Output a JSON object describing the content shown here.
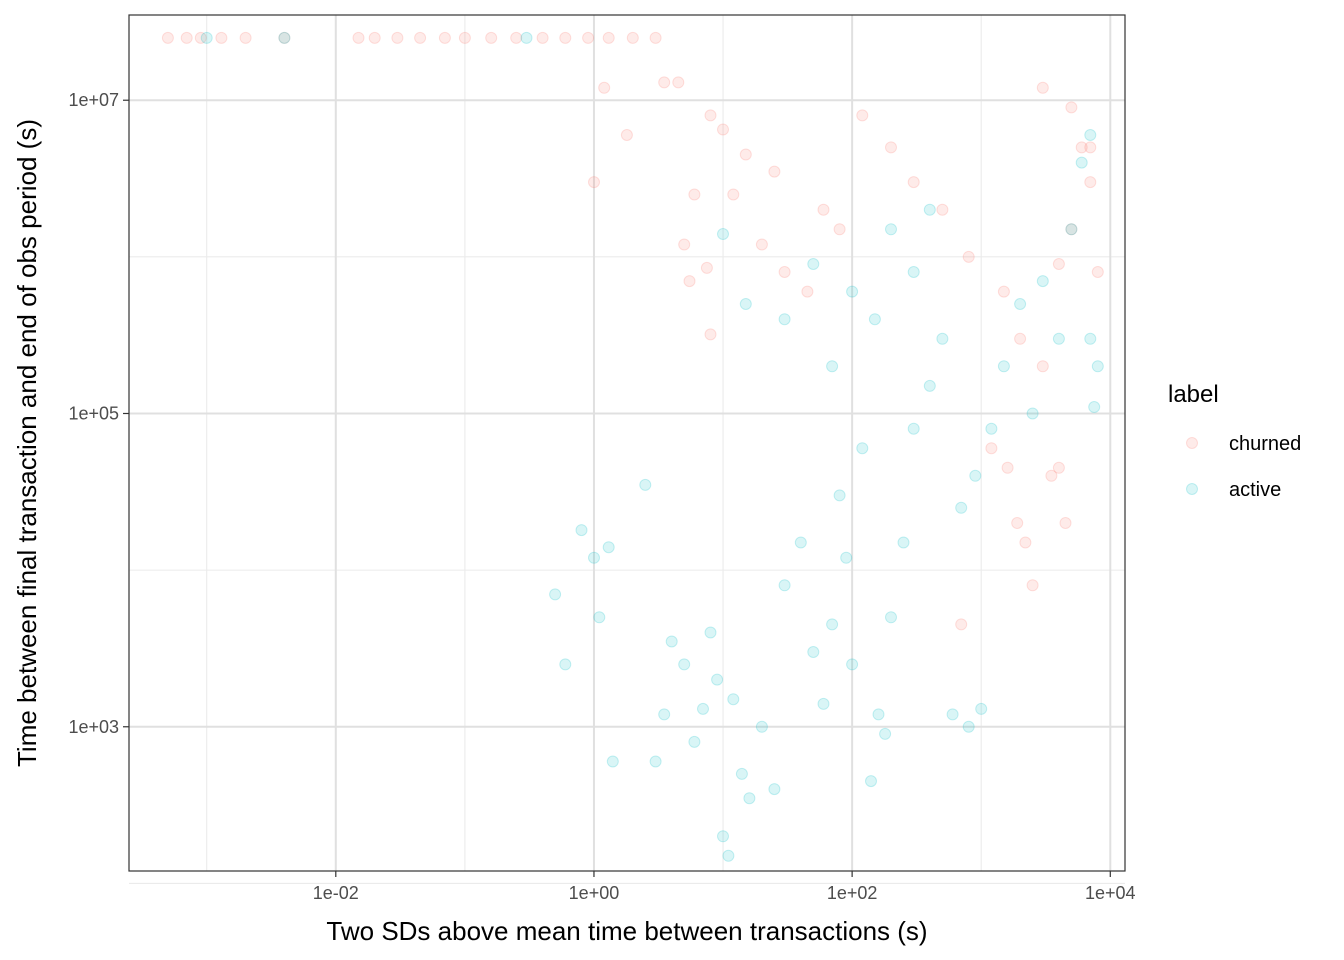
{
  "chart_data": {
    "type": "scatter",
    "xlabel": "Two SDs above mean time between transactions (s)",
    "ylabel": "Time between final transaction and end of obs period (s)",
    "x_scale": "log10",
    "y_scale": "log10",
    "xlim": [
      0.00025,
      13000
    ],
    "ylim": [
      120,
      35000000
    ],
    "x_ticks": [
      {
        "value": 0.01,
        "label": "1e-02"
      },
      {
        "value": 1,
        "label": "1e+00"
      },
      {
        "value": 100,
        "label": "1e+02"
      },
      {
        "value": 10000,
        "label": "1e+04"
      }
    ],
    "y_ticks": [
      {
        "value": 1000,
        "label": "1e+03"
      },
      {
        "value": 100000,
        "label": "1e+05"
      },
      {
        "value": 10000000,
        "label": "1e+07"
      }
    ],
    "grid": true,
    "point_alpha": 0.15,
    "legend": {
      "title": "label",
      "position": "right"
    },
    "series": [
      {
        "name": "churned",
        "color": "#F8766D",
        "points": [
          [
            0.0005,
            25000000
          ],
          [
            0.0007,
            25000000
          ],
          [
            0.0009,
            25000000
          ],
          [
            0.0013,
            25000000
          ],
          [
            0.002,
            25000000
          ],
          [
            0.004,
            25000000
          ],
          [
            0.015,
            25000000
          ],
          [
            0.02,
            25000000
          ],
          [
            0.03,
            25000000
          ],
          [
            0.045,
            25000000
          ],
          [
            0.07,
            25000000
          ],
          [
            0.1,
            25000000
          ],
          [
            0.16,
            25000000
          ],
          [
            0.25,
            25000000
          ],
          [
            0.4,
            25000000
          ],
          [
            0.6,
            25000000
          ],
          [
            0.9,
            25000000
          ],
          [
            1.3,
            25000000
          ],
          [
            2,
            25000000
          ],
          [
            3,
            25000000
          ],
          [
            1.2,
            12000000
          ],
          [
            3.5,
            13000000
          ],
          [
            4.5,
            13000000
          ],
          [
            1.8,
            6000000
          ],
          [
            1.0,
            3000000
          ],
          [
            5.5,
            700000
          ],
          [
            7.5,
            850000
          ],
          [
            8.0,
            320000
          ],
          [
            6.0,
            2500000
          ],
          [
            5.0,
            1200000
          ],
          [
            8,
            8000000
          ],
          [
            10,
            6500000
          ],
          [
            12,
            2500000
          ],
          [
            15,
            4500000
          ],
          [
            20,
            1200000
          ],
          [
            25,
            3500000
          ],
          [
            30,
            800000
          ],
          [
            45,
            600000
          ],
          [
            60,
            2000000
          ],
          [
            80,
            1500000
          ],
          [
            120,
            8000000
          ],
          [
            200,
            5000000
          ],
          [
            300,
            3000000
          ],
          [
            500,
            2000000
          ],
          [
            800,
            1000000
          ],
          [
            1500,
            600000
          ],
          [
            2000,
            300000
          ],
          [
            3000,
            200000
          ],
          [
            4000,
            900000
          ],
          [
            5000,
            1500000
          ],
          [
            1200,
            60000
          ],
          [
            1600,
            45000
          ],
          [
            1900,
            20000
          ],
          [
            2200,
            15000
          ],
          [
            2500,
            8000
          ],
          [
            3500,
            40000
          ],
          [
            4000,
            45000
          ],
          [
            4500,
            20000
          ],
          [
            700,
            4500
          ],
          [
            6000,
            5000000
          ],
          [
            7000,
            3000000
          ],
          [
            8000,
            800000
          ],
          [
            3000,
            12000000
          ],
          [
            5000,
            9000000
          ],
          [
            7000,
            5000000
          ]
        ]
      },
      {
        "name": "active",
        "color": "#00BFC4",
        "points": [
          [
            0.001,
            25000000
          ],
          [
            0.004,
            25000000
          ],
          [
            0.3,
            25000000
          ],
          [
            0.5,
            7000
          ],
          [
            0.6,
            2500
          ],
          [
            0.8,
            18000
          ],
          [
            1.0,
            12000
          ],
          [
            1.1,
            5000
          ],
          [
            1.3,
            14000
          ],
          [
            1.4,
            600
          ],
          [
            2.5,
            35000
          ],
          [
            3,
            600
          ],
          [
            3.5,
            1200
          ],
          [
            4,
            3500
          ],
          [
            5,
            2500
          ],
          [
            6,
            800
          ],
          [
            7,
            1300
          ],
          [
            8,
            4000
          ],
          [
            9,
            2000
          ],
          [
            10,
            200
          ],
          [
            11,
            150
          ],
          [
            12,
            1500
          ],
          [
            14,
            500
          ],
          [
            16,
            350
          ],
          [
            20,
            1000
          ],
          [
            25,
            400
          ],
          [
            30,
            8000
          ],
          [
            40,
            15000
          ],
          [
            50,
            3000
          ],
          [
            60,
            1400
          ],
          [
            70,
            4500
          ],
          [
            80,
            30000
          ],
          [
            90,
            12000
          ],
          [
            100,
            2500
          ],
          [
            120,
            60000
          ],
          [
            140,
            450
          ],
          [
            160,
            1200
          ],
          [
            180,
            900
          ],
          [
            200,
            5000
          ],
          [
            250,
            15000
          ],
          [
            300,
            80000
          ],
          [
            400,
            150000
          ],
          [
            500,
            300000
          ],
          [
            600,
            1200
          ],
          [
            700,
            25000
          ],
          [
            800,
            1000
          ],
          [
            900,
            40000
          ],
          [
            1000,
            1300
          ],
          [
            1200,
            80000
          ],
          [
            1500,
            200000
          ],
          [
            2000,
            500000
          ],
          [
            2500,
            100000
          ],
          [
            3000,
            700000
          ],
          [
            4000,
            300000
          ],
          [
            5000,
            1500000
          ],
          [
            6000,
            4000000
          ],
          [
            7000,
            6000000
          ],
          [
            7000,
            300000
          ],
          [
            7500,
            110000
          ],
          [
            8000,
            200000
          ],
          [
            30,
            400000
          ],
          [
            50,
            900000
          ],
          [
            70,
            200000
          ],
          [
            100,
            600000
          ],
          [
            150,
            400000
          ],
          [
            200,
            1500000
          ],
          [
            300,
            800000
          ],
          [
            400,
            2000000
          ],
          [
            15,
            500000
          ],
          [
            10,
            1400000
          ]
        ]
      }
    ]
  }
}
